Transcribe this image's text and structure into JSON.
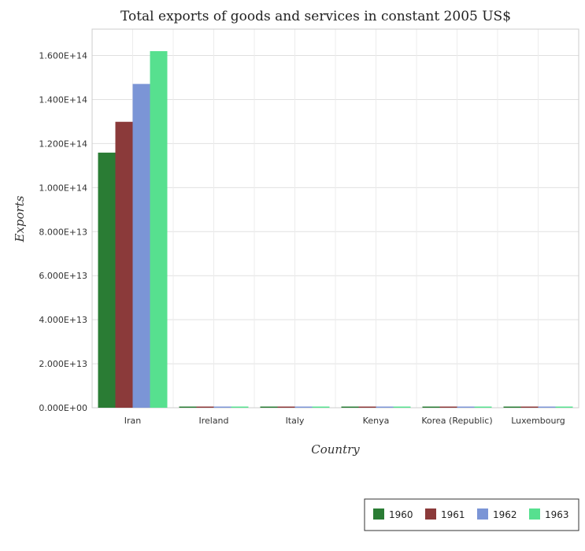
{
  "chart_data": {
    "type": "bar",
    "title": "Total exports of goods and services in constant 2005 US$",
    "xlabel": "Country",
    "ylabel": "Exports",
    "categories": [
      "Iran",
      "Ireland",
      "Italy",
      "Kenya",
      "Korea (Republic)",
      "Luxembourg"
    ],
    "series": [
      {
        "name": "1960",
        "color": "#2a7c34",
        "values": [
          115900000000000.0,
          30000000000.0,
          50000000000.0,
          110000000000.0,
          290000000000.0,
          30000000000.0
        ]
      },
      {
        "name": "1961",
        "color": "#8b3a3a",
        "values": [
          129900000000000.0,
          30000000000.0,
          60000000000.0,
          120000000000.0,
          370000000000.0,
          30000000000.0
        ]
      },
      {
        "name": "1962",
        "color": "#7b95d6",
        "values": [
          147100000000000.0,
          40000000000.0,
          70000000000.0,
          130000000000.0,
          420000000000.0,
          30000000000.0
        ]
      },
      {
        "name": "1963",
        "color": "#57e08f",
        "values": [
          162000000000000.0,
          40000000000.0,
          80000000000.0,
          150000000000.0,
          500000000000.0,
          30000000000.0
        ]
      }
    ],
    "yticks": [
      "0.000E+00",
      "2.000E+13",
      "4.000E+13",
      "6.000E+13",
      "8.000E+13",
      "1.000E+14",
      "1.200E+14",
      "1.400E+14",
      "1.600E+14"
    ],
    "ytick_values": [
      0,
      20000000000000.0,
      40000000000000.0,
      60000000000000.0,
      80000000000000.0,
      100000000000000.0,
      120000000000000.0,
      140000000000000.0,
      160000000000000.0
    ],
    "ylim": [
      0,
      172000000000000.0
    ],
    "grid": true,
    "legend_position": "bottom-right"
  }
}
